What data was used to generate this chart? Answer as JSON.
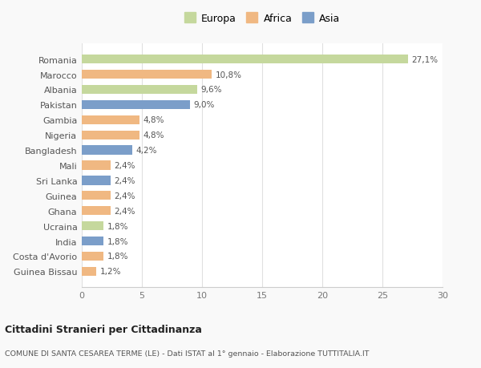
{
  "countries": [
    "Romania",
    "Marocco",
    "Albania",
    "Pakistan",
    "Gambia",
    "Nigeria",
    "Bangladesh",
    "Mali",
    "Sri Lanka",
    "Guinea",
    "Ghana",
    "Ucraina",
    "India",
    "Costa d'Avorio",
    "Guinea Bissau"
  ],
  "values": [
    27.1,
    10.8,
    9.6,
    9.0,
    4.8,
    4.8,
    4.2,
    2.4,
    2.4,
    2.4,
    2.4,
    1.8,
    1.8,
    1.8,
    1.2
  ],
  "labels": [
    "27,1%",
    "10,8%",
    "9,6%",
    "9,0%",
    "4,8%",
    "4,8%",
    "4,2%",
    "2,4%",
    "2,4%",
    "2,4%",
    "2,4%",
    "1,8%",
    "1,8%",
    "1,8%",
    "1,2%"
  ],
  "continents": [
    "Europa",
    "Africa",
    "Europa",
    "Asia",
    "Africa",
    "Africa",
    "Asia",
    "Africa",
    "Asia",
    "Africa",
    "Africa",
    "Europa",
    "Asia",
    "Africa",
    "Africa"
  ],
  "colors": {
    "Europa": "#c5d89d",
    "Africa": "#f0b882",
    "Asia": "#7b9ec9"
  },
  "legend_labels": [
    "Europa",
    "Africa",
    "Asia"
  ],
  "title": "Cittadini Stranieri per Cittadinanza",
  "subtitle": "COMUNE DI SANTA CESAREA TERME (LE) - Dati ISTAT al 1° gennaio - Elaborazione TUTTITALIA.IT",
  "xlim": [
    0,
    30
  ],
  "xticks": [
    0,
    5,
    10,
    15,
    20,
    25,
    30
  ],
  "background_color": "#f9f9f9",
  "bar_background": "#ffffff"
}
